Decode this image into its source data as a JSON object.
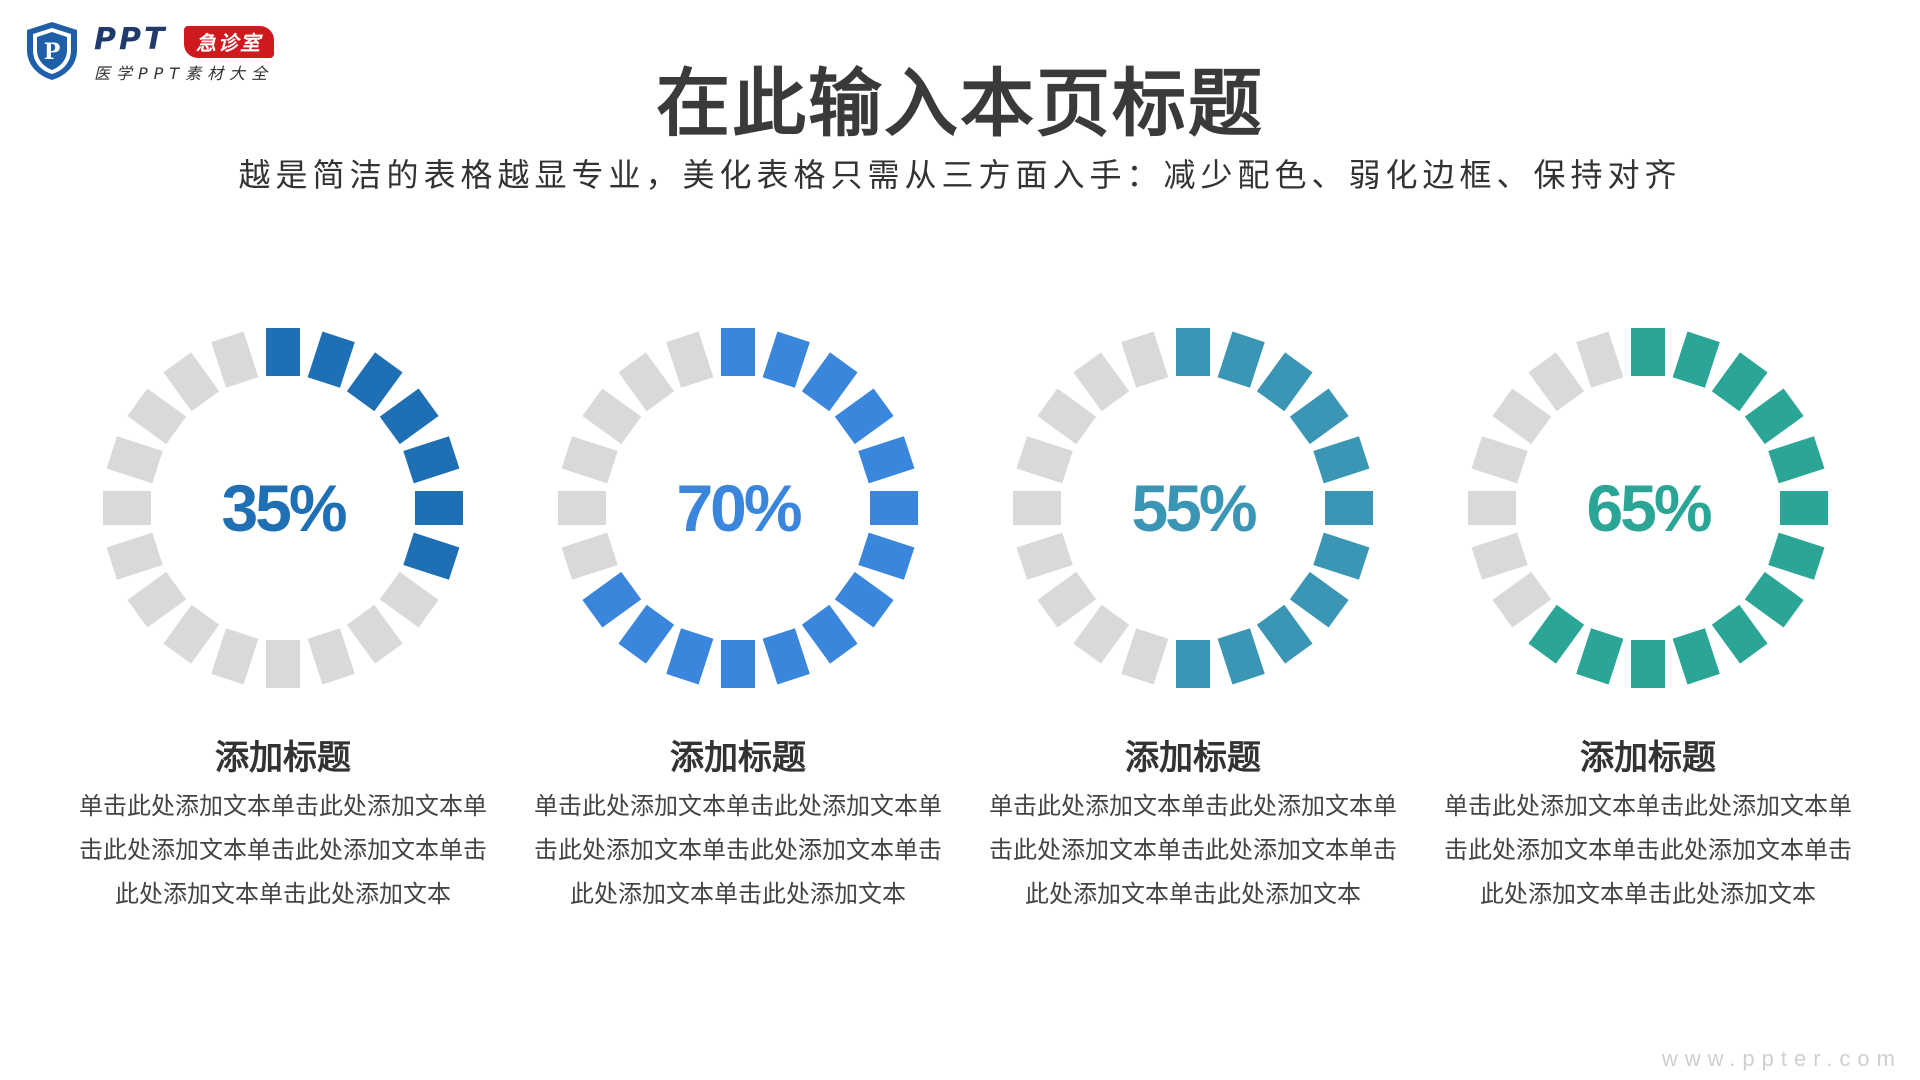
{
  "logo": {
    "brand": "PPT",
    "badge": "急诊室",
    "tagline": "医学PPT素材大全",
    "shield_letter": "P",
    "colors": {
      "shield": "#1f5fa8",
      "badge": "#d0191f"
    }
  },
  "header": {
    "title": "在此输入本页标题",
    "subtitle": "越是简洁的表格越显专业，美化表格只需从三方面入手：减少配色、弱化边框、保持对齐"
  },
  "inactive_color": "#d9d9d9",
  "items": [
    {
      "percent": 35,
      "label": "35%",
      "color": "#1f6fb5",
      "title": "添加标题",
      "desc": "单击此处添加文本单击此处添加文本单击此处添加文本单击此处添加文本单击此处添加文本单击此处添加文本"
    },
    {
      "percent": 70,
      "label": "70%",
      "color": "#3a86dc",
      "title": "添加标题",
      "desc": "单击此处添加文本单击此处添加文本单击此处添加文本单击此处添加文本单击此处添加文本单击此处添加文本"
    },
    {
      "percent": 55,
      "label": "55%",
      "color": "#3a96b4",
      "title": "添加标题",
      "desc": "单击此处添加文本单击此处添加文本单击此处添加文本单击此处添加文本单击此处添加文本单击此处添加文本"
    },
    {
      "percent": 65,
      "label": "65%",
      "color": "#2aa596",
      "title": "添加标题",
      "desc": "单击此处添加文本单击此处添加文本单击此处添加文本单击此处添加文本单击此处添加文本单击此处添加文本"
    }
  ],
  "watermark": "www.ppter.com"
}
